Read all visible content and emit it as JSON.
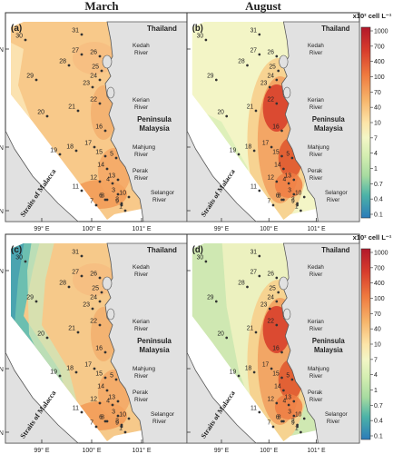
{
  "column_titles": [
    "March",
    "August"
  ],
  "axis": {
    "lat_labels": [
      "6° N",
      "4° N",
      "4° N"
    ],
    "lon_labels": [
      "99° E",
      "100° E",
      "101° E"
    ]
  },
  "legend": {
    "title": "x10² cell L⁻¹",
    "tick_labels": [
      "1000",
      "700",
      "400",
      "100",
      "70",
      "40",
      "10",
      "7",
      "4",
      "1",
      "0.7",
      "0.4",
      "0.1"
    ],
    "colors": {
      "high": "#b2182b",
      "upper": "#e0502c",
      "mid_high": "#f4a25a",
      "mid": "#fce4a8",
      "mid_low": "#eef2c4",
      "low": "#a6dba0",
      "very_low": "#4db3a7",
      "lowest": "#2b7bb9"
    }
  },
  "place_labels": {
    "thailand": "Thailand",
    "peninsula": [
      "Peninsula",
      "Malaysia"
    ],
    "straits": "Straits of Malacca",
    "rivers": [
      [
        "Kedah",
        "River"
      ],
      [
        "Kerian",
        "River"
      ],
      [
        "Mahjung",
        "River"
      ],
      [
        "Perak",
        "River"
      ],
      [
        "Selangor",
        "River"
      ]
    ]
  },
  "panels": [
    {
      "letter": "(a)",
      "month": "March",
      "scheme": "march_a"
    },
    {
      "letter": "(b)",
      "month": "August",
      "scheme": "august_b"
    },
    {
      "letter": "(c)",
      "month": "March",
      "scheme": "march_c"
    },
    {
      "letter": "(d)",
      "month": "August",
      "scheme": "august_d"
    }
  ],
  "stations": [
    "1",
    "2",
    "3",
    "4",
    "5",
    "6",
    "7",
    "8",
    "9",
    "10",
    "11",
    "12",
    "13",
    "14",
    "15",
    "16",
    "17",
    "18",
    "19",
    "20",
    "21",
    "22",
    "23",
    "24",
    "25",
    "26",
    "27",
    "28",
    "29",
    "30",
    "31"
  ]
}
